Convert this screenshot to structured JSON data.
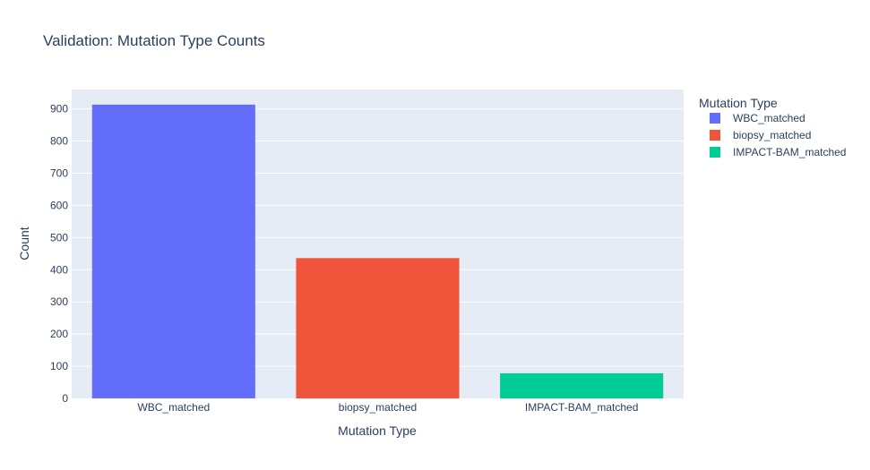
{
  "chart_data": {
    "type": "bar",
    "title": "Validation: Mutation Type Counts",
    "xlabel": "Mutation Type",
    "ylabel": "Count",
    "categories": [
      "WBC_matched",
      "biopsy_matched",
      "IMPACT-BAM_matched"
    ],
    "values": [
      913,
      436,
      78
    ],
    "colors": [
      "#636efa",
      "#ef553b",
      "#00cc96"
    ],
    "ylim": [
      0,
      960
    ],
    "yticks": [
      0,
      100,
      200,
      300,
      400,
      500,
      600,
      700,
      800,
      900
    ],
    "grid": true,
    "legend": {
      "title": "Mutation Type",
      "position": "right",
      "entries": [
        "WBC_matched",
        "biopsy_matched",
        "IMPACT-BAM_matched"
      ]
    }
  }
}
